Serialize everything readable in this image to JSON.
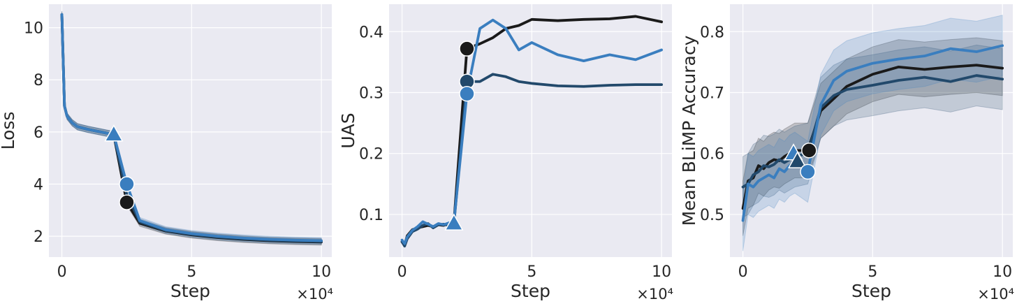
{
  "colors": {
    "background": "#eaeaf2",
    "grid": "#ffffff",
    "black": "#1a1a1a",
    "dark_blue": "#22496b",
    "blue": "#3a7ebf"
  },
  "chart_data": [
    {
      "type": "line",
      "xlabel": "Step",
      "ylabel": "Loss",
      "x_multiplier": "×10⁴",
      "xlim": [
        -0.5,
        10.4
      ],
      "ylim": [
        1.2,
        10.9
      ],
      "xticks": [
        0,
        5,
        10
      ],
      "yticks": [
        2,
        4,
        6,
        8,
        10
      ],
      "grid": true,
      "series": [
        {
          "color": "black",
          "band": 0.12,
          "x": [
            0,
            0.1,
            0.2,
            0.4,
            0.6,
            1.0,
            1.5,
            2.0,
            2.5,
            3.0,
            4.0,
            5.0,
            6.0,
            7.0,
            8.0,
            9.0,
            10.0
          ],
          "y": [
            10.5,
            7.0,
            6.6,
            6.35,
            6.2,
            6.1,
            6.0,
            5.9,
            3.3,
            2.5,
            2.2,
            2.05,
            1.95,
            1.88,
            1.83,
            1.8,
            1.78
          ]
        },
        {
          "color": "dark_blue",
          "band": 0.12,
          "x": [
            0,
            0.1,
            0.2,
            0.4,
            0.6,
            1.0,
            1.5,
            2.0,
            2.5,
            3.0,
            4.0,
            5.0,
            6.0,
            7.0,
            8.0,
            9.0,
            10.0
          ],
          "y": [
            10.5,
            7.0,
            6.6,
            6.35,
            6.2,
            6.1,
            6.0,
            5.9,
            3.6,
            2.55,
            2.22,
            2.07,
            1.97,
            1.9,
            1.85,
            1.82,
            1.8
          ]
        },
        {
          "color": "blue",
          "band": 0.12,
          "x": [
            0,
            0.1,
            0.2,
            0.4,
            0.6,
            1.0,
            1.5,
            2.0,
            2.5,
            3.0,
            4.0,
            5.0,
            6.0,
            7.0,
            8.0,
            9.0,
            10.0
          ],
          "y": [
            10.5,
            7.0,
            6.6,
            6.35,
            6.2,
            6.1,
            6.0,
            5.9,
            4.0,
            2.6,
            2.25,
            2.1,
            2.0,
            1.93,
            1.88,
            1.85,
            1.83
          ]
        }
      ],
      "markers": [
        {
          "shape": "triangle",
          "color": "blue",
          "x": 2.0,
          "y": 5.9
        },
        {
          "shape": "circle",
          "color": "black",
          "x": 2.5,
          "y": 3.3
        },
        {
          "shape": "circle",
          "color": "blue",
          "x": 2.5,
          "y": 4.0
        }
      ]
    },
    {
      "type": "line",
      "xlabel": "Step",
      "ylabel": "UAS",
      "x_multiplier": "×10⁴",
      "xlim": [
        -0.5,
        10.4
      ],
      "ylim": [
        0.03,
        0.445
      ],
      "xticks": [
        0,
        5,
        10
      ],
      "yticks": [
        0.1,
        0.2,
        0.3,
        0.4
      ],
      "grid": true,
      "series": [
        {
          "color": "black",
          "band": 0,
          "x": [
            0,
            0.1,
            0.2,
            0.4,
            0.6,
            0.8,
            1.0,
            1.2,
            1.4,
            1.6,
            1.8,
            2.0,
            2.5,
            3.0,
            3.5,
            4.0,
            4.5,
            5.0,
            6.0,
            7.0,
            8.0,
            9.0,
            10.0
          ],
          "y": [
            0.055,
            0.05,
            0.065,
            0.075,
            0.078,
            0.08,
            0.082,
            0.08,
            0.083,
            0.082,
            0.085,
            0.087,
            0.372,
            0.38,
            0.39,
            0.405,
            0.41,
            0.42,
            0.418,
            0.42,
            0.421,
            0.425,
            0.416
          ]
        },
        {
          "color": "dark_blue",
          "band": 0,
          "x": [
            0,
            0.1,
            0.2,
            0.4,
            0.6,
            0.8,
            1.0,
            1.2,
            1.4,
            1.6,
            1.8,
            2.0,
            2.5,
            3.0,
            3.5,
            4.0,
            4.5,
            5.0,
            6.0,
            7.0,
            8.0,
            9.0,
            10.0
          ],
          "y": [
            0.055,
            0.048,
            0.06,
            0.072,
            0.076,
            0.082,
            0.085,
            0.078,
            0.083,
            0.084,
            0.082,
            0.085,
            0.318,
            0.318,
            0.33,
            0.326,
            0.318,
            0.315,
            0.311,
            0.31,
            0.312,
            0.313,
            0.313
          ]
        },
        {
          "color": "blue",
          "band": 0,
          "x": [
            0,
            0.1,
            0.2,
            0.4,
            0.6,
            0.8,
            1.0,
            1.2,
            1.4,
            1.6,
            1.8,
            2.0,
            2.5,
            3.0,
            3.5,
            4.0,
            4.5,
            5.0,
            6.0,
            7.0,
            8.0,
            9.0,
            10.0
          ],
          "y": [
            0.058,
            0.052,
            0.063,
            0.074,
            0.08,
            0.088,
            0.084,
            0.08,
            0.085,
            0.083,
            0.086,
            0.088,
            0.298,
            0.405,
            0.419,
            0.405,
            0.37,
            0.382,
            0.362,
            0.352,
            0.362,
            0.354,
            0.37
          ]
        }
      ],
      "markers": [
        {
          "shape": "triangle",
          "color": "blue",
          "x": 2.0,
          "y": 0.085
        },
        {
          "shape": "circle",
          "color": "black",
          "x": 2.5,
          "y": 0.372
        },
        {
          "shape": "circle",
          "color": "dark_blue",
          "x": 2.5,
          "y": 0.318
        },
        {
          "shape": "circle",
          "color": "blue",
          "x": 2.5,
          "y": 0.298
        }
      ]
    },
    {
      "type": "line",
      "xlabel": "Step",
      "ylabel": "Mean BLiMP Accuracy",
      "x_multiplier": "×10⁴",
      "xlim": [
        -0.5,
        10.4
      ],
      "ylim": [
        0.43,
        0.845
      ],
      "xticks": [
        0,
        5,
        10
      ],
      "yticks": [
        0.5,
        0.6,
        0.7,
        0.8
      ],
      "grid": true,
      "series": [
        {
          "color": "black",
          "band": 0.045,
          "x": [
            0,
            0.2,
            0.4,
            0.6,
            0.8,
            1.0,
            1.2,
            1.4,
            1.6,
            1.8,
            2.0,
            2.5,
            3.0,
            3.5,
            4.0,
            5.0,
            6.0,
            7.0,
            8.0,
            9.0,
            10.0
          ],
          "y": [
            0.51,
            0.555,
            0.56,
            0.58,
            0.575,
            0.585,
            0.59,
            0.588,
            0.595,
            0.6,
            0.605,
            0.605,
            0.67,
            0.69,
            0.71,
            0.73,
            0.742,
            0.738,
            0.742,
            0.745,
            0.74
          ]
        },
        {
          "color": "dark_blue",
          "band": 0.05,
          "x": [
            0,
            0.2,
            0.4,
            0.6,
            0.8,
            1.0,
            1.2,
            1.4,
            1.6,
            1.8,
            2.0,
            2.5,
            3.0,
            3.5,
            4.0,
            5.0,
            6.0,
            7.0,
            8.0,
            9.0,
            10.0
          ],
          "y": [
            0.545,
            0.55,
            0.565,
            0.57,
            0.58,
            0.578,
            0.582,
            0.59,
            0.585,
            0.59,
            0.595,
            0.6,
            0.675,
            0.695,
            0.705,
            0.712,
            0.72,
            0.725,
            0.718,
            0.728,
            0.722
          ]
        },
        {
          "color": "blue",
          "band": 0.05,
          "x": [
            0,
            0.2,
            0.4,
            0.6,
            0.8,
            1.0,
            1.2,
            1.4,
            1.6,
            1.8,
            2.0,
            2.5,
            3.0,
            3.5,
            4.0,
            5.0,
            6.0,
            7.0,
            8.0,
            9.0,
            10.0
          ],
          "y": [
            0.49,
            0.55,
            0.545,
            0.555,
            0.56,
            0.565,
            0.56,
            0.575,
            0.57,
            0.58,
            0.585,
            0.57,
            0.68,
            0.72,
            0.735,
            0.748,
            0.755,
            0.76,
            0.772,
            0.767,
            0.777
          ]
        }
      ],
      "markers": [
        {
          "shape": "triangle",
          "color": "blue",
          "x": 1.95,
          "y": 0.6
        },
        {
          "shape": "triangle",
          "color": "dark_blue",
          "x": 2.1,
          "y": 0.587
        },
        {
          "shape": "circle",
          "color": "black",
          "x": 2.55,
          "y": 0.605
        },
        {
          "shape": "circle",
          "color": "blue",
          "x": 2.5,
          "y": 0.57
        }
      ]
    }
  ]
}
